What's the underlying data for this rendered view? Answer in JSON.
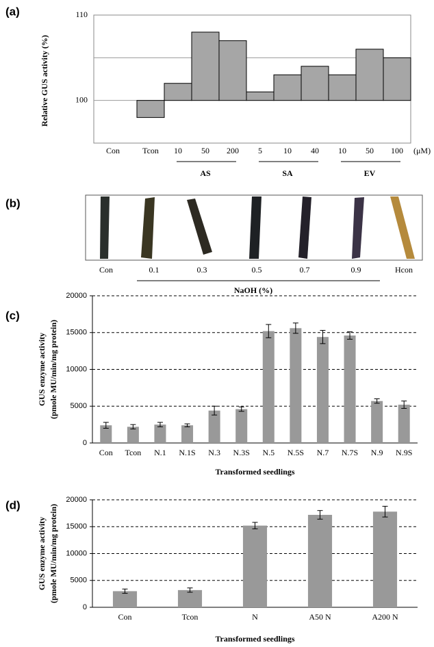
{
  "chart_data": [
    {
      "type": "step-bar",
      "panel": "(a)",
      "ylabel": "Relative GUS activity (%)",
      "categories": [
        "Con",
        "Tcon",
        "10",
        "50",
        "200",
        "5",
        "10",
        "40",
        "10",
        "50",
        "100"
      ],
      "values": [
        null,
        98,
        102,
        108,
        107,
        101,
        103,
        104,
        103,
        106,
        105
      ],
      "unit": "(μM)",
      "groups": [
        "AS",
        "SA",
        "EV"
      ],
      "baseline": 100,
      "color": "#a6a6a6",
      "ylim": [
        95,
        110
      ],
      "yticks": [
        100,
        110
      ],
      "grid_lines": [
        100,
        105
      ]
    },
    {
      "type": "image",
      "panel": "(b)",
      "categories": [
        "Con",
        "0.1",
        "0.3",
        "0.5",
        "0.7",
        "0.9",
        "Hcon"
      ],
      "xlabel": "NaOH (%)"
    },
    {
      "type": "bar",
      "panel": "(c)",
      "ylabel": "GUS enzyme activity",
      "ylabel_unit": "(pmole MU/min/mg protein)",
      "xlabel": "Transformed seedlings",
      "categories": [
        "Con",
        "Tcon",
        "N.1",
        "N.1S",
        "N.3",
        "N.3S",
        "N.5",
        "N.5S",
        "N.7",
        "N.7S",
        "N.9",
        "N.9S"
      ],
      "values": [
        2400,
        2200,
        2500,
        2400,
        4400,
        4600,
        15200,
        15600,
        14400,
        14600,
        5700,
        5200
      ],
      "errors": [
        400,
        300,
        300,
        200,
        600,
        300,
        900,
        700,
        900,
        500,
        300,
        500
      ],
      "color": "#999999",
      "ylim": [
        0,
        20000
      ],
      "yticks": [
        0,
        5000,
        10000,
        15000,
        20000
      ],
      "grid": true
    },
    {
      "type": "bar",
      "panel": "(d)",
      "ylabel": "GUS enzyme activity",
      "ylabel_unit": "(pmole MU/min/mg protein)",
      "xlabel": "Transformed seedlings",
      "categories": [
        "Con",
        "Tcon",
        "N",
        "A50 N",
        "A200 N"
      ],
      "values": [
        3000,
        3200,
        15200,
        17200,
        17800
      ],
      "errors": [
        400,
        400,
        600,
        800,
        1000
      ],
      "color": "#999999",
      "ylim": [
        0,
        20000
      ],
      "yticks": [
        0,
        5000,
        10000,
        15000,
        20000
      ],
      "grid": true
    }
  ]
}
